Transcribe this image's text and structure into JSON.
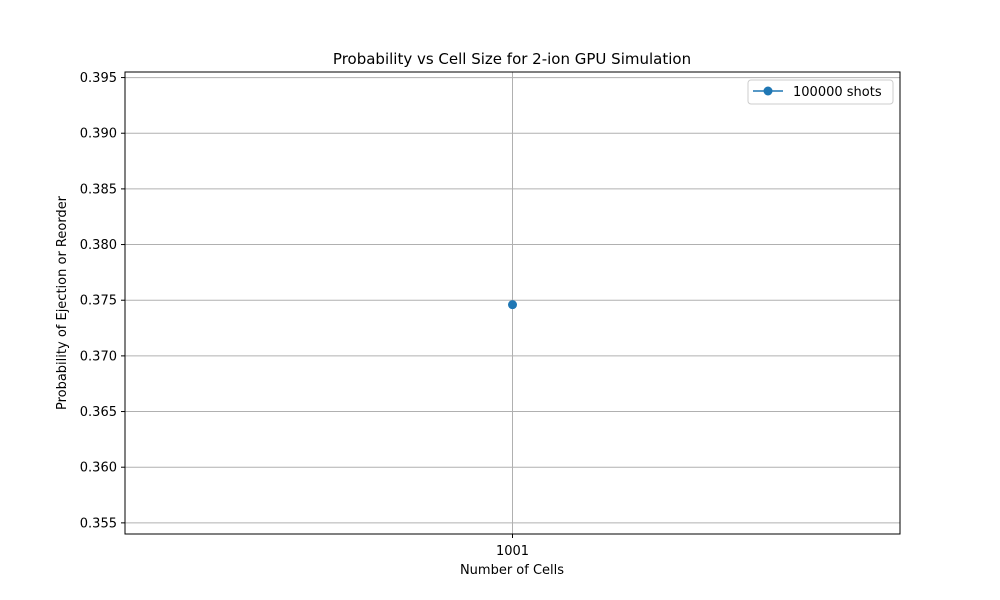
{
  "chart_data": {
    "type": "line",
    "title": "Probability vs Cell Size for 2-ion GPU Simulation",
    "xlabel": "Number of Cells",
    "ylabel": "Probability of Ejection or Reorder",
    "x_categories": [
      "1001"
    ],
    "ylim": [
      0.354,
      0.3955
    ],
    "yticks": [
      "0.355",
      "0.360",
      "0.365",
      "0.370",
      "0.375",
      "0.380",
      "0.385",
      "0.390",
      "0.395"
    ],
    "grid": true,
    "legend_position": "top-right",
    "series": [
      {
        "name": "100000 shots",
        "color": "#1f77b4",
        "x": [
          "1001"
        ],
        "y": [
          0.3746
        ]
      }
    ]
  }
}
